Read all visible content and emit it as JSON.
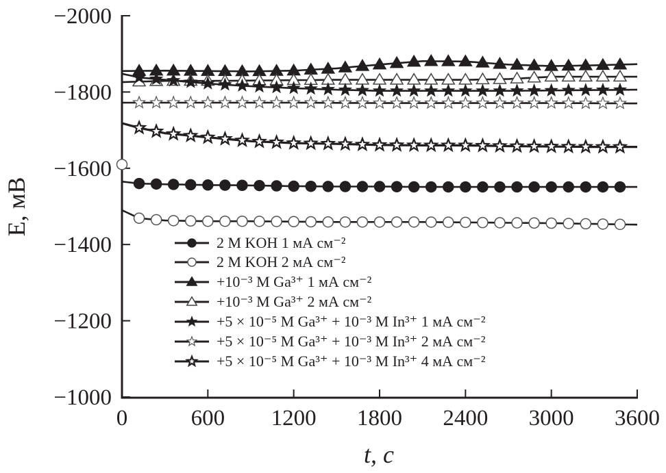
{
  "chart_data": {
    "type": "line",
    "title": "",
    "xlabel": "t, с",
    "ylabel": "E, мВ",
    "xlim": [
      0,
      3600
    ],
    "ylim": [
      -1000,
      -2000
    ],
    "y_axis_inverted": true,
    "grid": false,
    "legend_position": "bottom-left inside",
    "x_ticks": [
      "0",
      "600",
      "1200",
      "1800",
      "2400",
      "3000",
      "3600"
    ],
    "y_ticks": [
      "−2000",
      "−1800",
      "−1600",
      "−1400",
      "−1200",
      "−1000"
    ],
    "x_tick_values": [
      0,
      600,
      1200,
      1800,
      2400,
      3000,
      3600
    ],
    "y_tick_values": [
      -2000,
      -1800,
      -1600,
      -1400,
      -1200,
      -1000
    ],
    "series_color": "#231f20",
    "series": [
      {
        "name": "2 М KOH 1 мА см⁻²",
        "marker": "circle",
        "filled": true,
        "x": [
          0,
          120,
          300,
          600,
          900,
          1200,
          1500,
          1800,
          2100,
          2400,
          2700,
          3000,
          3300,
          3600
        ],
        "y": [
          -1565,
          -1560,
          -1558,
          -1556,
          -1555,
          -1553,
          -1552,
          -1552,
          -1551,
          -1551,
          -1551,
          -1551,
          -1551,
          -1551
        ]
      },
      {
        "name": "2 М KOH 2 мА см⁻²",
        "marker": "circle",
        "filled": false,
        "initial_point": [
          0,
          -1610
        ],
        "x": [
          0,
          120,
          300,
          600,
          900,
          1200,
          1500,
          1800,
          2100,
          2400,
          2700,
          3000,
          3300,
          3600
        ],
        "y": [
          -1490,
          -1469,
          -1463,
          -1461,
          -1461,
          -1460,
          -1459,
          -1459,
          -1459,
          -1458,
          -1457,
          -1456,
          -1454,
          -1452
        ]
      },
      {
        "name": "+10⁻³ М Ga³⁺ 1 мА см⁻²",
        "marker": "triangle",
        "filled": true,
        "x": [
          0,
          300,
          600,
          900,
          1200,
          1500,
          1800,
          2100,
          2400,
          2700,
          3000,
          3300,
          3600
        ],
        "y": [
          -1855,
          -1856,
          -1855,
          -1854,
          -1856,
          -1862,
          -1872,
          -1881,
          -1880,
          -1872,
          -1868,
          -1870,
          -1873
        ]
      },
      {
        "name": "+10⁻³ М Ga³⁺ 2 мА см⁻²",
        "marker": "triangle",
        "filled": false,
        "x": [
          0,
          300,
          600,
          900,
          1200,
          1500,
          1800,
          2100,
          2400,
          2700,
          3000,
          3300,
          3600
        ],
        "y": [
          -1826,
          -1829,
          -1829,
          -1830,
          -1831,
          -1832,
          -1832,
          -1832,
          -1832,
          -1834,
          -1840,
          -1840,
          -1840
        ]
      },
      {
        "name": "+5 × 10⁻⁵ М Ga³⁺ + 10⁻³ М In³⁺ 1 мА см⁻²",
        "marker": "star",
        "filled": true,
        "x": [
          0,
          120,
          300,
          600,
          900,
          1200,
          1500,
          1800,
          2100,
          2400,
          2700,
          3000,
          3300,
          3600
        ],
        "y": [
          -1848,
          -1838,
          -1832,
          -1822,
          -1815,
          -1810,
          -1806,
          -1803,
          -1803,
          -1803,
          -1803,
          -1804,
          -1805,
          -1806
        ]
      },
      {
        "name": "+5 × 10⁻⁵ М Ga³⁺ + 10⁻³ М In³⁺ 2 мА см⁻²",
        "marker": "star",
        "filled": false,
        "x": [
          0,
          600,
          1200,
          1800,
          2400,
          3000,
          3600
        ],
        "y": [
          -1772,
          -1772,
          -1772,
          -1771,
          -1771,
          -1771,
          -1770
        ]
      },
      {
        "name": "+5 × 10⁻⁵ М Ga³⁺ + 10⁻³ М In³⁺ 4 мА см⁻²",
        "marker": "star-half",
        "filled": false,
        "x": [
          0,
          120,
          300,
          600,
          900,
          1200,
          1500,
          1800,
          2100,
          2400,
          2700,
          3000,
          3300,
          3600
        ],
        "y": [
          -1718,
          -1706,
          -1692,
          -1681,
          -1671,
          -1666,
          -1664,
          -1661,
          -1660,
          -1660,
          -1658,
          -1657,
          -1656,
          -1656
        ]
      }
    ]
  }
}
